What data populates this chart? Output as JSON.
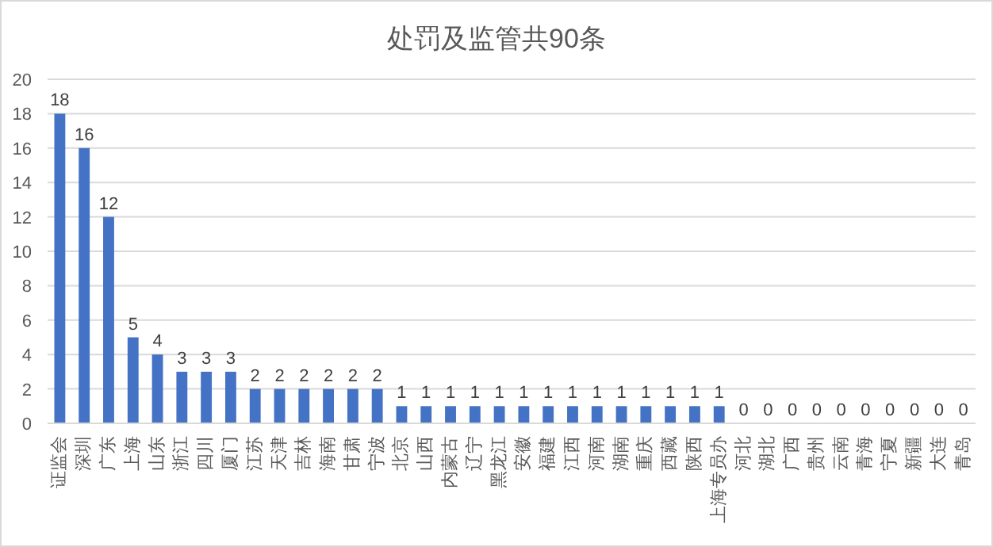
{
  "chart_data": {
    "type": "bar",
    "title": "处罚及监管共90条",
    "categories": [
      "证监会",
      "深圳",
      "广东",
      "上海",
      "山东",
      "浙江",
      "四川",
      "厦门",
      "江苏",
      "天津",
      "吉林",
      "海南",
      "甘肃",
      "宁波",
      "北京",
      "山西",
      "内蒙古",
      "辽宁",
      "黑龙江",
      "安徽",
      "福建",
      "江西",
      "河南",
      "湖南",
      "重庆",
      "西藏",
      "陕西",
      "上海专员办",
      "河北",
      "湖北",
      "广西",
      "贵州",
      "云南",
      "青海",
      "宁夏",
      "新疆",
      "大连",
      "青岛"
    ],
    "values": [
      18,
      16,
      12,
      5,
      4,
      3,
      3,
      3,
      2,
      2,
      2,
      2,
      2,
      2,
      1,
      1,
      1,
      1,
      1,
      1,
      1,
      1,
      1,
      1,
      1,
      1,
      1,
      1,
      0,
      0,
      0,
      0,
      0,
      0,
      0,
      0,
      0,
      0
    ],
    "color": "#4472c4",
    "ylim": [
      0,
      20
    ],
    "yticks": [
      0,
      2,
      4,
      6,
      8,
      10,
      12,
      14,
      16,
      18,
      20
    ],
    "grid": "y",
    "data_labels": true
  }
}
